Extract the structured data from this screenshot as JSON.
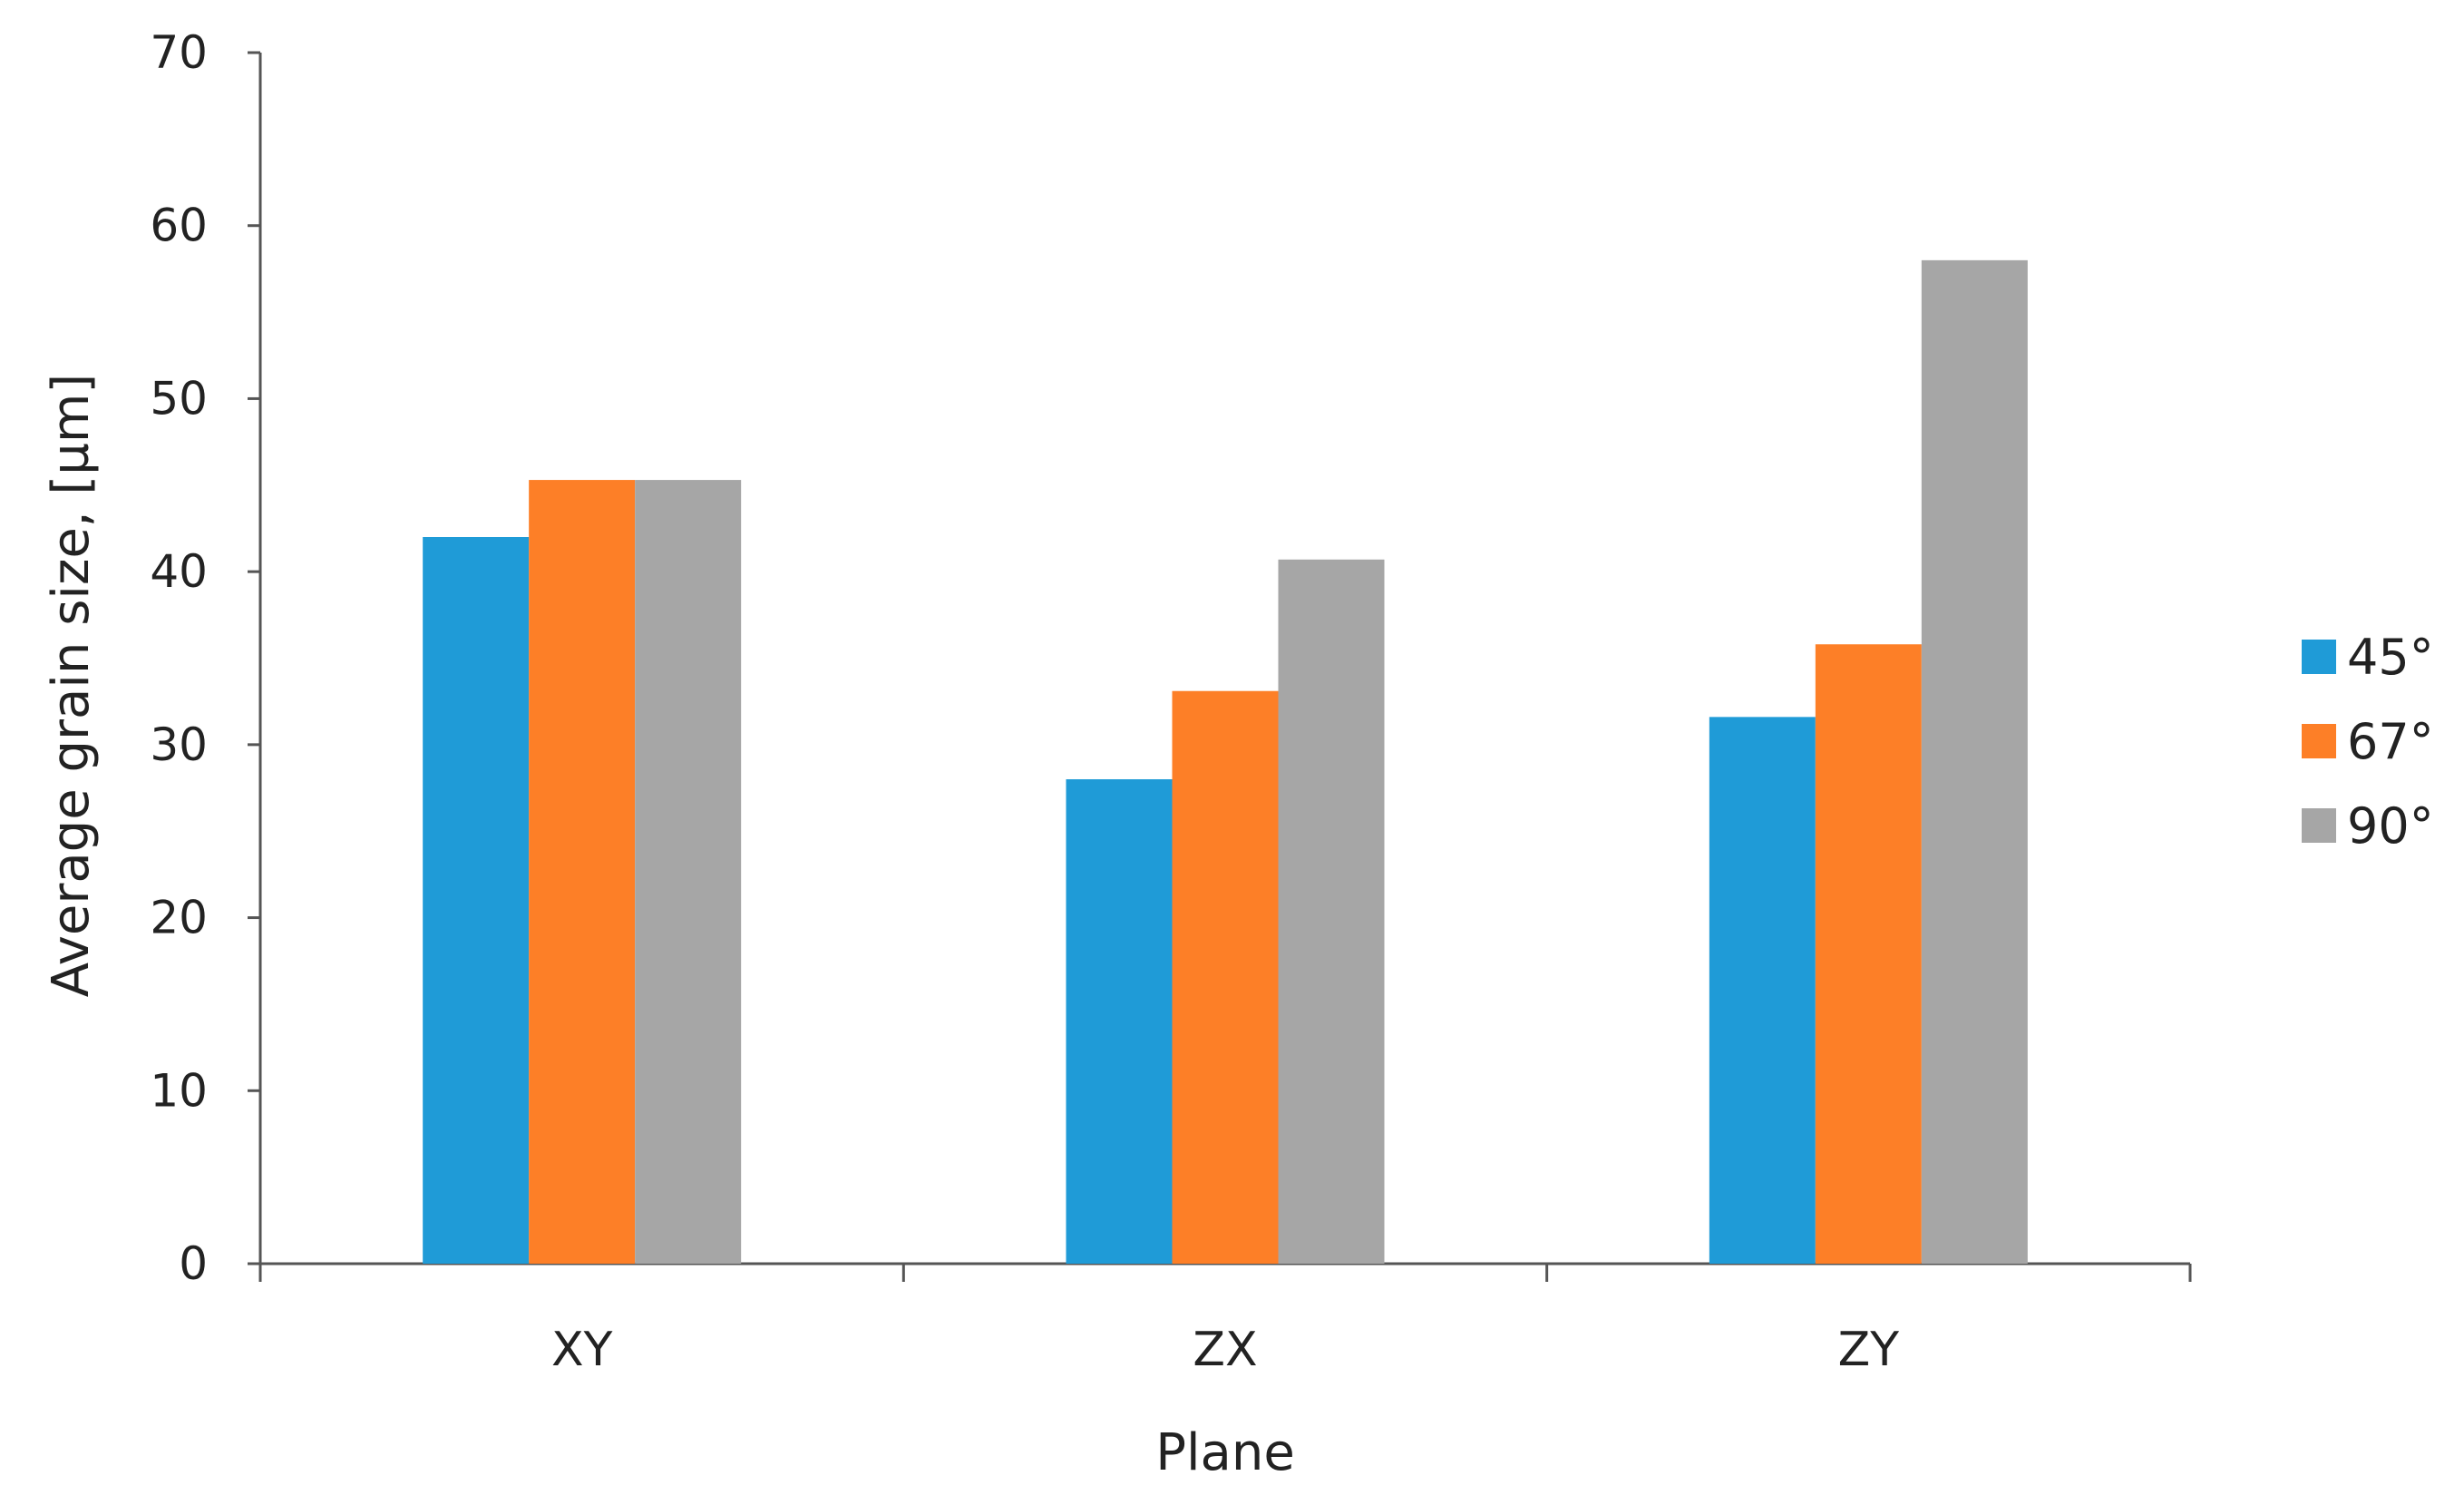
{
  "chart_data": {
    "type": "bar",
    "title": "",
    "xlabel": "Plane",
    "ylabel": "Average grain size, [µm]",
    "categories": [
      "XY",
      "ZX",
      "ZY"
    ],
    "series": [
      {
        "name": "45°",
        "color": "#1f9bd7",
        "values": [
          42.0,
          28.0,
          31.6
        ]
      },
      {
        "name": "67°",
        "color": "#fd7f27",
        "values": [
          45.3,
          33.1,
          35.8
        ]
      },
      {
        "name": "90°",
        "color": "#a6a6a6",
        "values": [
          45.3,
          40.7,
          58.0
        ]
      }
    ],
    "ylim": [
      0,
      70
    ],
    "yticks": [
      0,
      10,
      20,
      30,
      40,
      50,
      60,
      70
    ],
    "grid": false,
    "legend_position": "right"
  }
}
